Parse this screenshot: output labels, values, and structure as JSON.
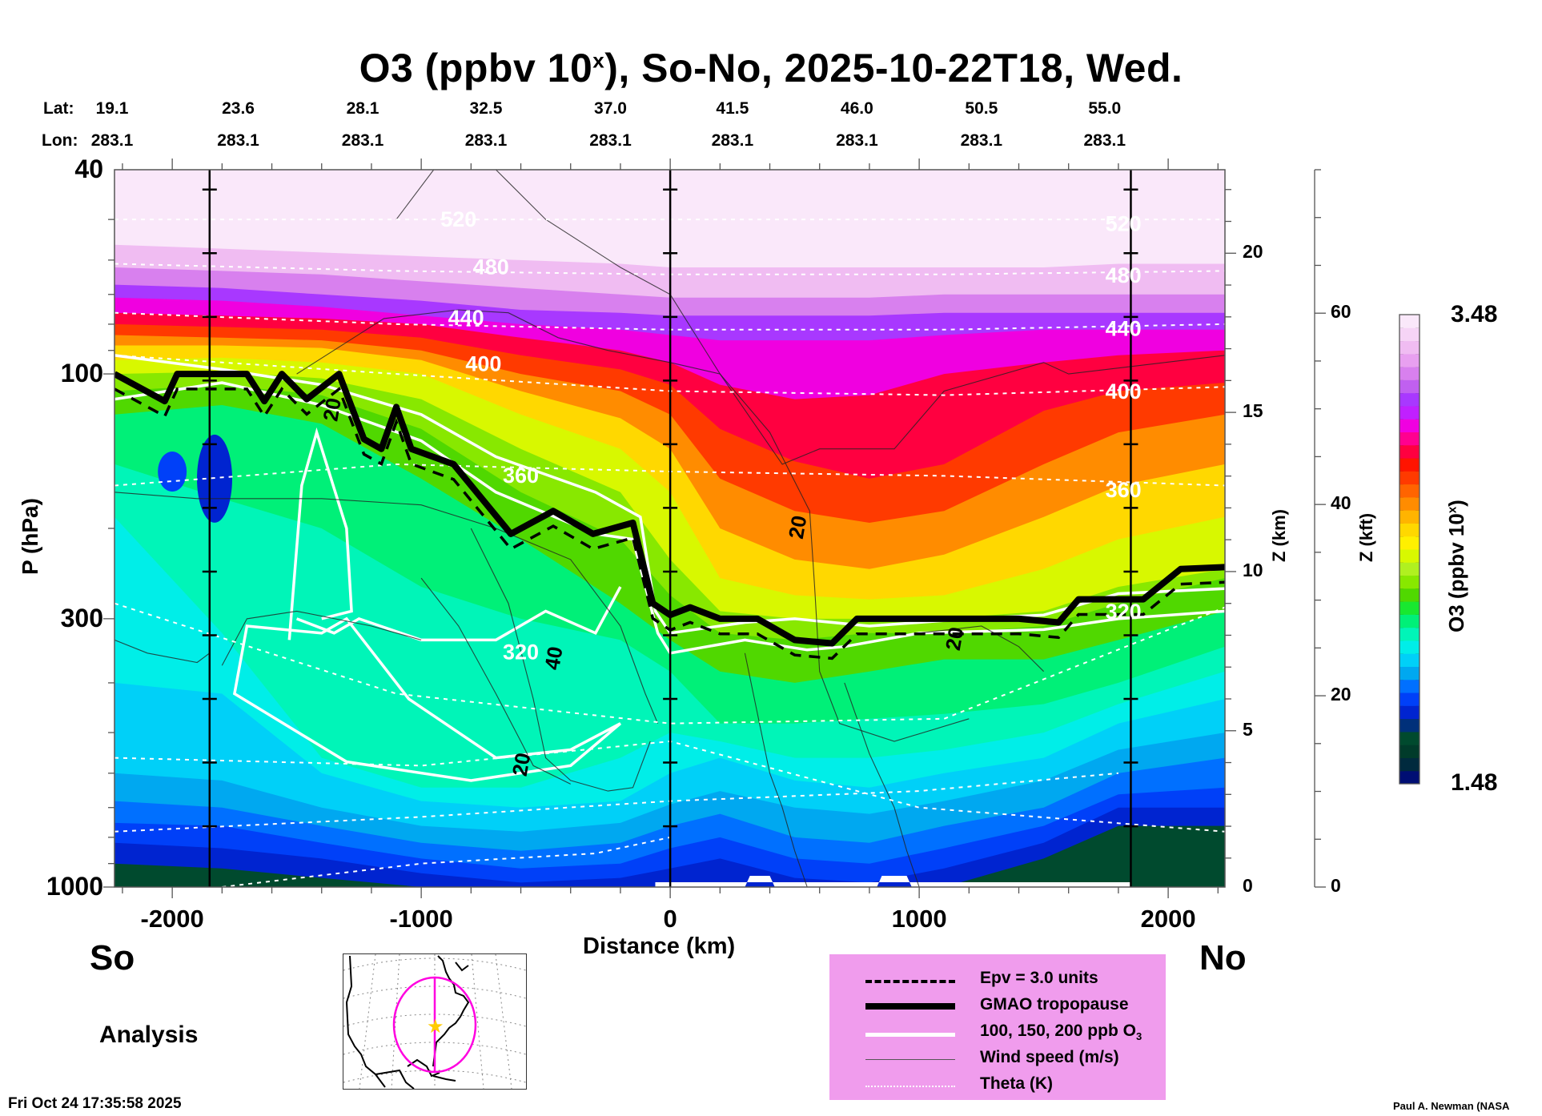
{
  "chart_data": {
    "type": "heatmap",
    "title": "O3 (ppbv 10",
    "title_sup": "x",
    "title_rest": "), So-No, 2025-10-22T18, Wed.",
    "xlabel": "Distance (km)",
    "ylabel": "P (hPa)",
    "y2label": "Z (km)",
    "y3label": "Z (kft)",
    "colorbar_label": "O3 (ppbv 10",
    "colorbar_label_sup": "x",
    "colorbar_label_end": ")",
    "xlim": [
      -2232,
      2228
    ],
    "ylim_hpa": [
      1000,
      40
    ],
    "y_scale": "log",
    "x_ticks": [
      {
        "value": -2000,
        "label": "-2000"
      },
      {
        "value": -1000,
        "label": "-1000"
      },
      {
        "value": 0,
        "label": "0"
      },
      {
        "value": 1000,
        "label": "1000"
      },
      {
        "value": 2000,
        "label": "2000"
      }
    ],
    "p_ticks": [
      {
        "value": 40,
        "label": "40"
      },
      {
        "value": 100,
        "label": "100"
      },
      {
        "value": 300,
        "label": "300"
      },
      {
        "value": 1000,
        "label": "1000"
      }
    ],
    "z_km_ticks": [
      {
        "value": 0,
        "label": "0"
      },
      {
        "value": 5,
        "label": "5"
      },
      {
        "value": 10,
        "label": "10"
      },
      {
        "value": 15,
        "label": "15"
      },
      {
        "value": 20,
        "label": "20"
      }
    ],
    "z_kft_ticks": [
      {
        "value": 0,
        "label": "0"
      },
      {
        "value": 20,
        "label": "20"
      },
      {
        "value": 40,
        "label": "40"
      },
      {
        "value": 60,
        "label": "60"
      }
    ],
    "colorbar": {
      "min": 1.48,
      "max": 3.48,
      "min_label": "1.48",
      "max_label": "3.48",
      "colors": [
        "#000e73",
        "#002a3e",
        "#003b2a",
        "#004a2e",
        "#00307a",
        "#0024d0",
        "#0040f8",
        "#0070ff",
        "#00a8f0",
        "#00d0f8",
        "#00eee8",
        "#00f5b8",
        "#00f078",
        "#18e830",
        "#50d800",
        "#88e800",
        "#b0f020",
        "#d8f800",
        "#fff000",
        "#ffd800",
        "#ffb400",
        "#ff8c00",
        "#ff6400",
        "#ff3a00",
        "#ff1400",
        "#ff0040",
        "#ff0090",
        "#f000e0",
        "#c020ff",
        "#a838ff",
        "#c060f0",
        "#d880ee",
        "#e8a0f0",
        "#f0bcf2",
        "#f6d4f6",
        "#fae8fa"
      ]
    },
    "lat_row_label": "Lat:",
    "lon_row_label": "Lon:",
    "sections": [
      {
        "distance_km": -2232,
        "lat": "19.1",
        "lon": "283.1"
      },
      {
        "distance_km": -1735,
        "lat": "23.6",
        "lon": "283.1"
      },
      {
        "distance_km": -1235,
        "lat": "28.1",
        "lon": "283.1"
      },
      {
        "distance_km": -740,
        "lat": "32.5",
        "lon": "283.1"
      },
      {
        "distance_km": -240,
        "lat": "37.0",
        "lon": "283.1"
      },
      {
        "distance_km": 250,
        "lat": "41.5",
        "lon": "283.1"
      },
      {
        "distance_km": 750,
        "lat": "46.0",
        "lon": "283.1"
      },
      {
        "distance_km": 1250,
        "lat": "50.5",
        "lon": "283.1"
      },
      {
        "distance_km": 1745,
        "lat": "55.0",
        "lon": "283.1"
      }
    ],
    "vertical_markers_km": [
      -1850,
      0,
      1850
    ],
    "theta_contours": [
      {
        "label": "520",
        "label_at_km": -850,
        "p": [
          50,
          50,
          50,
          50,
          50
        ]
      },
      {
        "label": "480",
        "label_at_km": -720,
        "p": [
          61,
          63,
          64,
          64,
          63
        ]
      },
      {
        "label": "440",
        "label_at_km": -820,
        "p": [
          76,
          80,
          82,
          82,
          80
        ]
      },
      {
        "label": "400",
        "label_at_km": -750,
        "p": [
          92,
          100,
          108,
          110,
          106
        ]
      },
      {
        "label": "360",
        "label_at_km": -600,
        "p": [
          165,
          150,
          155,
          158,
          165
        ]
      },
      {
        "label": "320",
        "label_at_km": -600,
        "p": [
          280,
          420,
          480,
          470,
          285
        ]
      }
    ],
    "tropopause_p": [
      [
        -2232,
        100
      ],
      [
        -2030,
        113
      ],
      [
        -1980,
        100
      ],
      [
        -1700,
        100
      ],
      [
        -1630,
        113
      ],
      [
        -1560,
        100
      ],
      [
        -1460,
        112
      ],
      [
        -1330,
        100
      ],
      [
        -1230,
        134
      ],
      [
        -1160,
        140
      ],
      [
        -1100,
        116
      ],
      [
        -1040,
        140
      ],
      [
        -870,
        150
      ],
      [
        -640,
        205
      ],
      [
        -470,
        185
      ],
      [
        -310,
        205
      ],
      [
        -150,
        195
      ],
      [
        -70,
        280
      ],
      [
        0,
        295
      ],
      [
        80,
        285
      ],
      [
        200,
        300
      ],
      [
        350,
        300
      ],
      [
        500,
        330
      ],
      [
        650,
        335
      ],
      [
        750,
        300
      ],
      [
        1000,
        300
      ],
      [
        1400,
        300
      ],
      [
        1560,
        305
      ],
      [
        1640,
        275
      ],
      [
        1900,
        275
      ],
      [
        2050,
        240
      ],
      [
        2228,
        238
      ]
    ],
    "wind_labels": [
      {
        "text": "20",
        "at_km": 540,
        "p": 200
      },
      {
        "text": "40",
        "at_km": -440,
        "p": 360
      },
      {
        "text": "20",
        "at_km": -570,
        "p": 580
      },
      {
        "text": "20",
        "at_km": 1170,
        "p": 330
      },
      {
        "text": "20",
        "at_km": -1330,
        "p": 118
      }
    ]
  },
  "labels": {
    "south": "So",
    "north": "No",
    "analysis": "Analysis",
    "timestamp": "Fri Oct 24 17:35:58 2025",
    "credit": "Paul A. Newman (NASA"
  },
  "legend": {
    "items": [
      {
        "label": "Epv = 3.0 units",
        "style": "dashed"
      },
      {
        "label": "GMAO tropopause",
        "style": "thick"
      },
      {
        "label": "100, 150, 200 ppb O",
        "sub": "3",
        "style": "white"
      },
      {
        "label": "Wind speed (m/s)",
        "style": "thin"
      },
      {
        "label": "Theta (K)",
        "style": "dotted"
      }
    ]
  },
  "map": {
    "circle_color": "#ff00e0",
    "star_color": "#ffcc00"
  }
}
